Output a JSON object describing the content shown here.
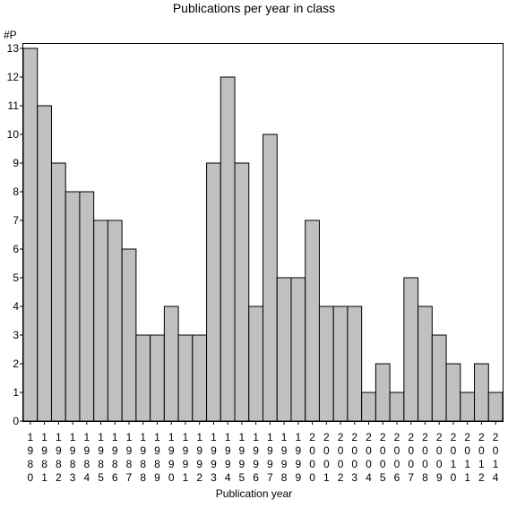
{
  "chart_data": {
    "type": "bar",
    "title": "Publications per year in class",
    "xlabel": "Publication year",
    "ylabel": "#P",
    "ylim": [
      0,
      13
    ],
    "yticks": [
      0,
      1,
      2,
      3,
      4,
      5,
      6,
      7,
      8,
      9,
      10,
      11,
      12,
      13
    ],
    "grid": false,
    "bar_color": "#c0c0c0",
    "edge_color": "#000000",
    "categories": [
      "1980",
      "1981",
      "1982",
      "1983",
      "1984",
      "1985",
      "1986",
      "1987",
      "1988",
      "1989",
      "1990",
      "1991",
      "1992",
      "1993",
      "1994",
      "1995",
      "1996",
      "1997",
      "1998",
      "1999",
      "2000",
      "2001",
      "2002",
      "2003",
      "2004",
      "2005",
      "2006",
      "2007",
      "2008",
      "2009",
      "2010",
      "2011",
      "2012",
      "2014"
    ],
    "values": [
      13,
      11,
      9,
      8,
      8,
      7,
      7,
      6,
      3,
      3,
      4,
      3,
      3,
      9,
      12,
      9,
      4,
      10,
      5,
      5,
      7,
      4,
      4,
      4,
      1,
      2,
      1,
      5,
      4,
      3,
      2,
      1,
      2,
      1
    ]
  }
}
